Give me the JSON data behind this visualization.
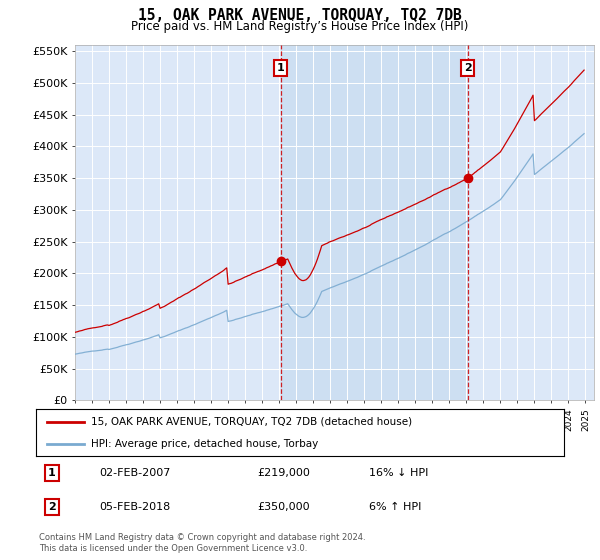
{
  "title": "15, OAK PARK AVENUE, TORQUAY, TQ2 7DB",
  "subtitle": "Price paid vs. HM Land Registry’s House Price Index (HPI)",
  "ylim": [
    0,
    560000
  ],
  "xlim_start": 1995.0,
  "xlim_end": 2025.5,
  "yticks": [
    0,
    50000,
    100000,
    150000,
    200000,
    250000,
    300000,
    350000,
    400000,
    450000,
    500000,
    550000
  ],
  "vline1_x": 2007.08,
  "vline2_x": 2018.08,
  "sale1_x": 2007.08,
  "sale1_y": 219000,
  "sale2_x": 2018.08,
  "sale2_y": 350000,
  "plot_bg": "#dce8f8",
  "plot_bg_shaded": "#c8dcf0",
  "red_color": "#cc0000",
  "blue_color": "#7aaad0",
  "grid_color": "#ffffff",
  "legend_label_red": "15, OAK PARK AVENUE, TORQUAY, TQ2 7DB (detached house)",
  "legend_label_blue": "HPI: Average price, detached house, Torbay",
  "annotation1_label": "1",
  "annotation1_date": "02-FEB-2007",
  "annotation1_price": "£219,000",
  "annotation1_hpi": "16% ↓ HPI",
  "annotation2_label": "2",
  "annotation2_date": "05-FEB-2018",
  "annotation2_price": "£350,000",
  "annotation2_hpi": "6% ↑ HPI",
  "footer": "Contains HM Land Registry data © Crown copyright and database right 2024.\nThis data is licensed under the Open Government Licence v3.0."
}
